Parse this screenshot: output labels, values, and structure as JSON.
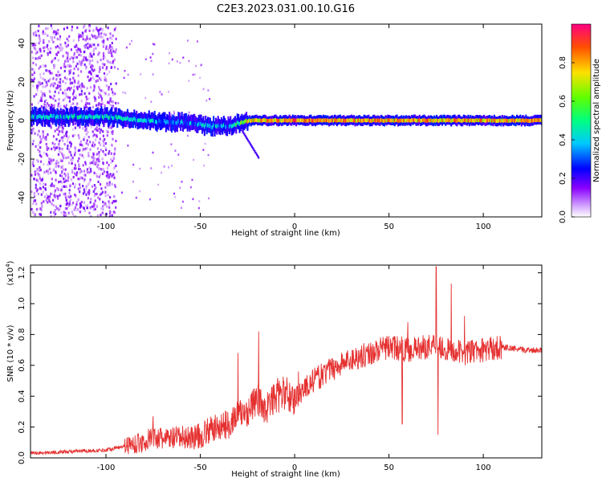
{
  "title": "C2E3.2023.031.00.10.G16",
  "chart_data": [
    {
      "type": "heatmap",
      "xlabel": "Height of straight line (km)",
      "ylabel": "Frequency (Hz)",
      "xlim": [
        -140,
        131
      ],
      "ylim": [
        -50,
        50
      ],
      "xticks": [
        -100,
        -50,
        0,
        50,
        100
      ],
      "yticks": [
        -40,
        -20,
        0,
        20,
        40
      ],
      "colorbar": {
        "label": "Normalized spectral amplitude",
        "range": [
          0.0,
          1.0
        ],
        "ticks": [
          "0.0",
          "0.2",
          "0.4",
          "0.6",
          "0.8"
        ],
        "colormap": "rainbow (white → purple → blue → cyan → green → yellow → red)"
      },
      "ridge": [
        {
          "x": -140,
          "freq": 2,
          "amp": 0.5
        },
        {
          "x": -100,
          "freq": 2,
          "amp": 0.55
        },
        {
          "x": -80,
          "freq": 0,
          "amp": 0.5
        },
        {
          "x": -60,
          "freq": -1,
          "amp": 0.45
        },
        {
          "x": -45,
          "freq": -3,
          "amp": 0.5
        },
        {
          "x": -35,
          "freq": -3,
          "amp": 0.45
        },
        {
          "x": -25,
          "freq": 0,
          "amp": 0.85
        },
        {
          "x": 0,
          "freq": 0,
          "amp": 0.95
        },
        {
          "x": 50,
          "freq": 0,
          "amp": 0.9
        },
        {
          "x": 100,
          "freq": 0,
          "amp": 0.9
        },
        {
          "x": 131,
          "freq": 0,
          "amp": 0.9
        }
      ],
      "noise_region": {
        "x_from": -140,
        "x_to": -95,
        "freq_from": -50,
        "freq_to": 50
      }
    },
    {
      "type": "line",
      "xlabel": "Height of straight line (km)",
      "ylabel": "SNR (10 * v/v)",
      "yscale_label": "(x10",
      "yscale_exp": "4",
      "xlim": [
        -140,
        131
      ],
      "ylim": [
        0.0,
        1.25
      ],
      "xticks": [
        -100,
        -50,
        0,
        50,
        100
      ],
      "yticks": [
        "0.0",
        "0.2",
        "0.4",
        "0.6",
        "0.8",
        "1.0",
        "1.2"
      ],
      "series": [
        {
          "color": "#e53030",
          "x": [
            -140,
            -120,
            -100,
            -90,
            -80,
            -75,
            -70,
            -60,
            -50,
            -45,
            -40,
            -35,
            -30,
            -25,
            -20,
            -15,
            -10,
            -5,
            0,
            5,
            10,
            20,
            30,
            40,
            50,
            60,
            70,
            75,
            80,
            90,
            100,
            110,
            120,
            131
          ],
          "y": [
            0.03,
            0.04,
            0.05,
            0.08,
            0.1,
            0.14,
            0.12,
            0.13,
            0.14,
            0.18,
            0.2,
            0.22,
            0.28,
            0.3,
            0.38,
            0.32,
            0.4,
            0.42,
            0.38,
            0.45,
            0.5,
            0.58,
            0.64,
            0.68,
            0.72,
            0.7,
            0.72,
            0.75,
            0.7,
            0.68,
            0.7,
            0.72,
            0.7,
            0.7
          ],
          "spikes": [
            {
              "x": -75,
              "y": 0.27
            },
            {
              "x": -30,
              "y": 0.68
            },
            {
              "x": -19,
              "y": 0.82
            },
            {
              "x": 2,
              "y": 0.56
            },
            {
              "x": 60,
              "y": 0.88
            },
            {
              "x": 75,
              "y": 1.24
            },
            {
              "x": 83,
              "y": 1.13
            },
            {
              "x": 90,
              "y": 0.92
            },
            {
              "x": 57,
              "y": 0.22
            },
            {
              "x": 76,
              "y": 0.15
            }
          ]
        }
      ]
    }
  ]
}
